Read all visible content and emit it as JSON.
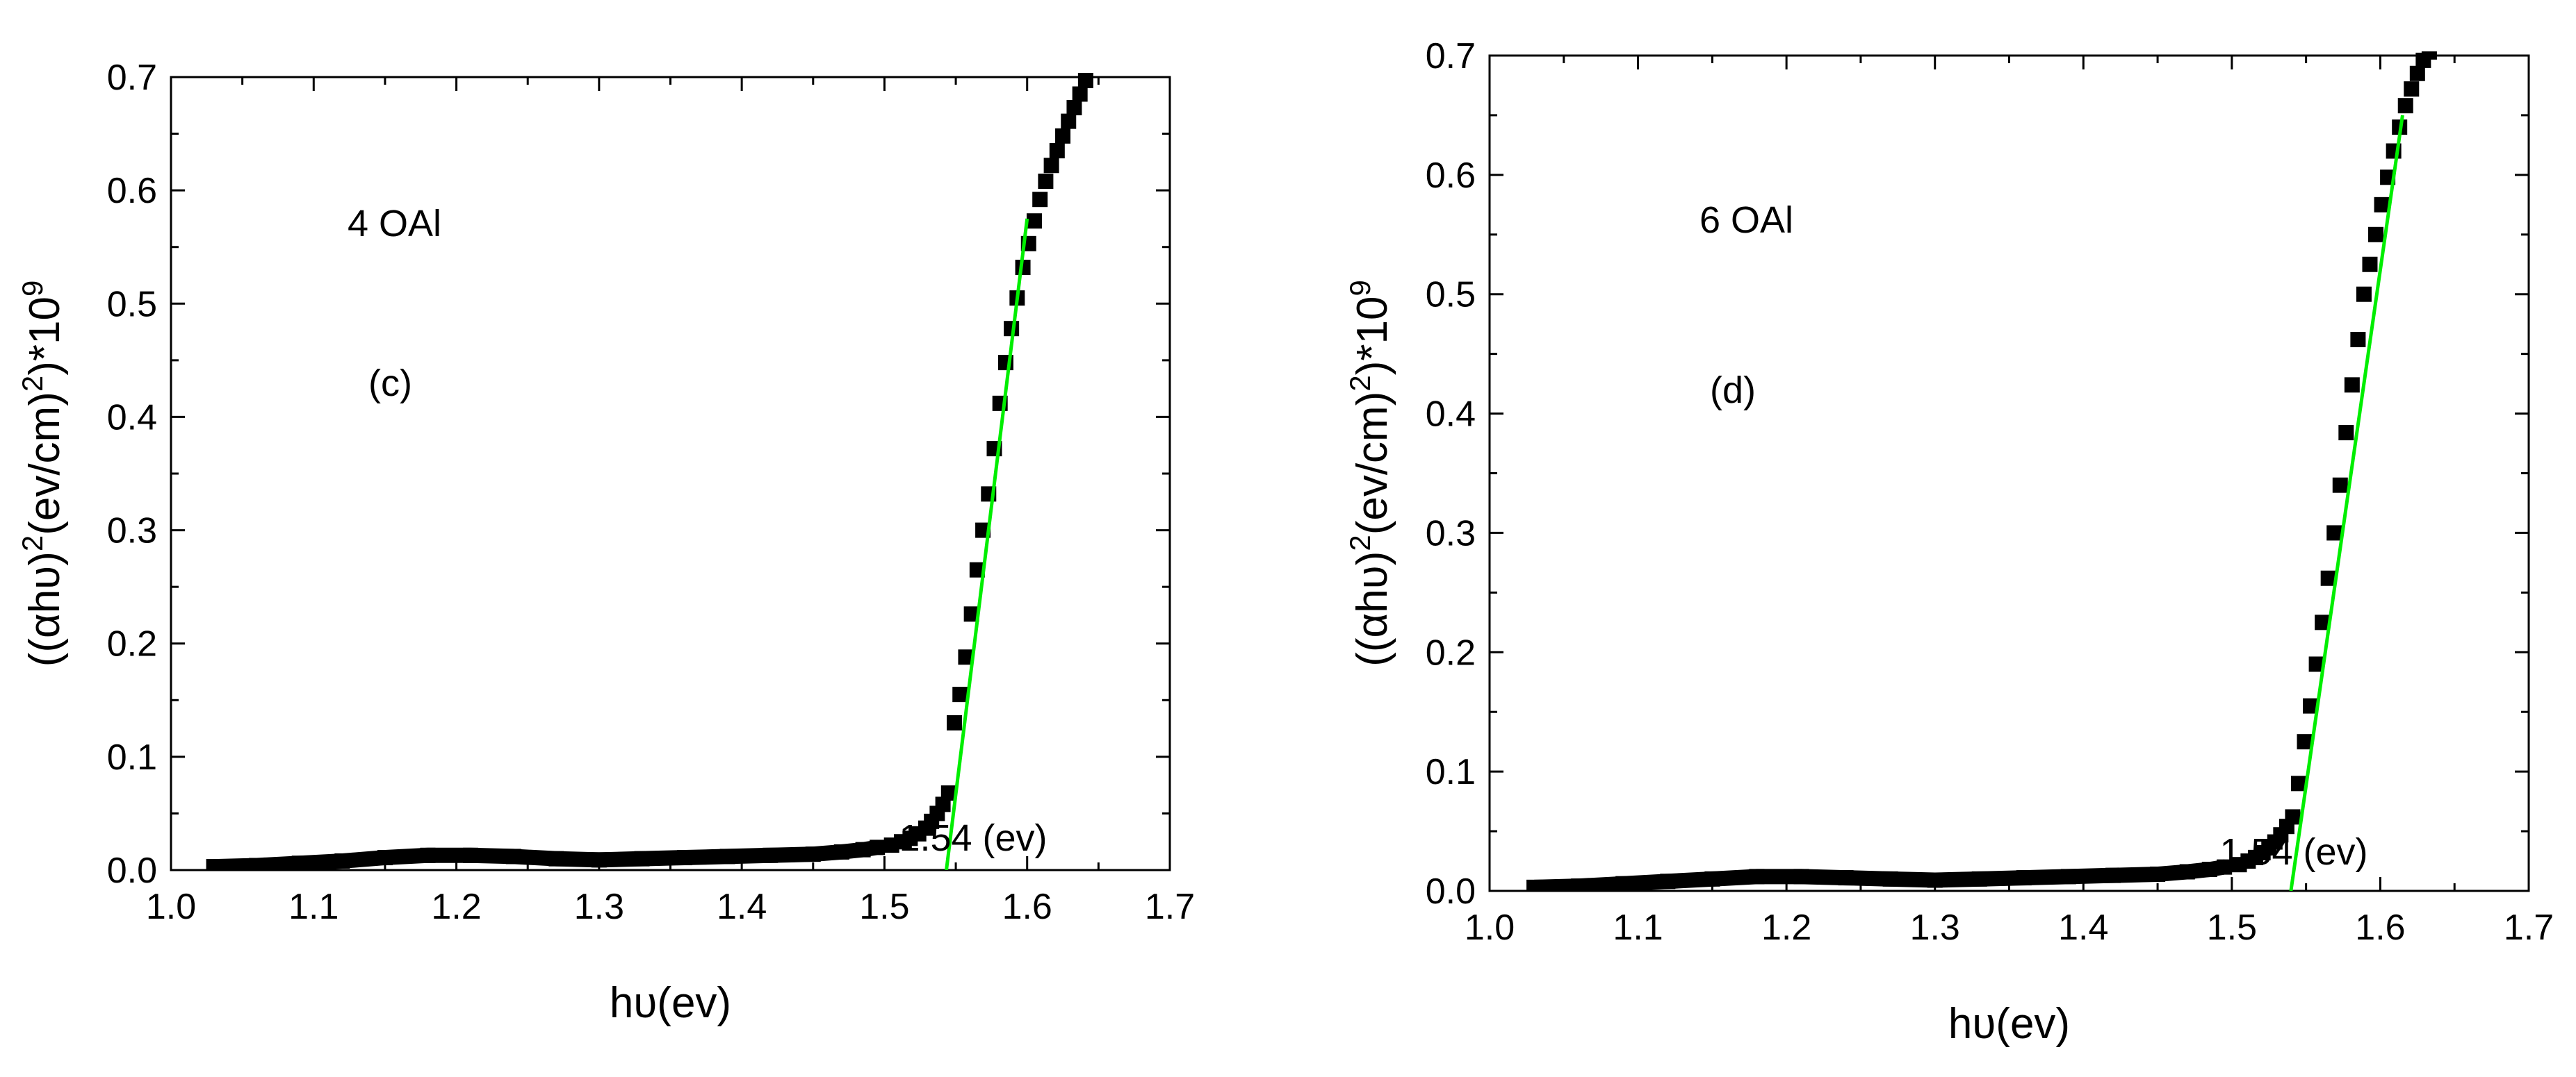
{
  "chart_data": [
    {
      "type": "scatter",
      "panel_label": "(c)",
      "sample_label": "4 OAl",
      "xlabel": "hυ(ev)",
      "ylabel": "((αhυ)²(ev/cm)²)*10⁹",
      "ylabel_parts": {
        "pre": "((αhυ)",
        "sup1": "2",
        "mid": "(ev/cm)",
        "sup2": "2",
        "post": ")*10",
        "sup3": "9"
      },
      "xlim": [
        1.0,
        1.7
      ],
      "ylim": [
        0.0,
        0.7
      ],
      "x_ticks": [
        "1.0",
        "1.1",
        "1.2",
        "1.3",
        "1.4",
        "1.5",
        "1.6",
        "1.7"
      ],
      "y_ticks": [
        "0.0",
        "0.1",
        "0.2",
        "0.3",
        "0.4",
        "0.5",
        "0.6",
        "0.7"
      ],
      "annotation": "1.54 (ev)",
      "fit_line": {
        "color": "#00ee00",
        "x": [
          1.5434,
          1.6
        ],
        "y": [
          0.0,
          0.575
        ]
      },
      "series": [
        {
          "name": "data",
          "color": "#000000",
          "x": [
            1.03,
            1.06,
            1.09,
            1.12,
            1.15,
            1.18,
            1.21,
            1.24,
            1.27,
            1.3,
            1.33,
            1.36,
            1.39,
            1.42,
            1.45,
            1.47,
            1.485,
            1.495,
            1.505,
            1.512,
            1.518,
            1.524,
            1.529,
            1.533,
            1.537,
            1.541,
            1.545,
            1.549,
            1.553,
            1.557,
            1.561,
            1.565,
            1.569,
            1.573,
            1.577,
            1.581,
            1.585,
            1.589,
            1.593,
            1.597,
            1.601,
            1.605,
            1.609,
            1.613,
            1.617,
            1.621,
            1.625,
            1.629,
            1.633,
            1.637,
            1.641
          ],
          "y": [
            0.003,
            0.004,
            0.006,
            0.008,
            0.011,
            0.013,
            0.013,
            0.012,
            0.01,
            0.009,
            0.01,
            0.011,
            0.012,
            0.013,
            0.014,
            0.016,
            0.018,
            0.02,
            0.022,
            0.025,
            0.028,
            0.032,
            0.037,
            0.043,
            0.05,
            0.058,
            0.068,
            0.13,
            0.155,
            0.188,
            0.226,
            0.265,
            0.3,
            0.332,
            0.372,
            0.412,
            0.448,
            0.478,
            0.505,
            0.532,
            0.553,
            0.573,
            0.592,
            0.608,
            0.622,
            0.635,
            0.648,
            0.661,
            0.673,
            0.685,
            0.697
          ]
        }
      ]
    },
    {
      "type": "scatter",
      "panel_label": "(d)",
      "sample_label": "6 OAl",
      "xlabel": "hυ(ev)",
      "ylabel": "((αhυ)²(ev/cm)²)*10⁹",
      "ylabel_parts": {
        "pre": "((αhυ)",
        "sup1": "2",
        "mid": "(ev/cm)",
        "sup2": "2",
        "post": ")*10",
        "sup3": "9"
      },
      "xlim": [
        1.0,
        1.7
      ],
      "ylim": [
        0.0,
        0.7
      ],
      "x_ticks": [
        "1.0",
        "1.1",
        "1.2",
        "1.3",
        "1.4",
        "1.5",
        "1.6",
        "1.7"
      ],
      "y_ticks": [
        "0.0",
        "0.1",
        "0.2",
        "0.3",
        "0.4",
        "0.5",
        "0.6",
        "0.7"
      ],
      "annotation": "1.54 (ev)",
      "fit_line": {
        "color": "#00ee00",
        "x": [
          1.5398,
          1.615
        ],
        "y": [
          0.0,
          0.65
        ]
      },
      "series": [
        {
          "name": "data",
          "color": "#000000",
          "x": [
            1.03,
            1.06,
            1.09,
            1.12,
            1.15,
            1.18,
            1.21,
            1.24,
            1.27,
            1.3,
            1.33,
            1.36,
            1.39,
            1.42,
            1.45,
            1.47,
            1.485,
            1.495,
            1.505,
            1.511,
            1.516,
            1.521,
            1.525,
            1.529,
            1.533,
            1.537,
            1.541,
            1.545,
            1.549,
            1.553,
            1.557,
            1.561,
            1.565,
            1.569,
            1.573,
            1.577,
            1.581,
            1.585,
            1.589,
            1.593,
            1.597,
            1.601,
            1.605,
            1.609,
            1.613,
            1.617,
            1.621,
            1.625,
            1.629,
            1.633
          ],
          "y": [
            0.003,
            0.004,
            0.006,
            0.008,
            0.01,
            0.012,
            0.012,
            0.011,
            0.01,
            0.009,
            0.01,
            0.011,
            0.012,
            0.013,
            0.014,
            0.016,
            0.018,
            0.02,
            0.022,
            0.025,
            0.028,
            0.032,
            0.036,
            0.041,
            0.047,
            0.054,
            0.062,
            0.09,
            0.125,
            0.155,
            0.19,
            0.225,
            0.262,
            0.3,
            0.34,
            0.384,
            0.424,
            0.462,
            0.5,
            0.525,
            0.55,
            0.575,
            0.598,
            0.62,
            0.64,
            0.658,
            0.672,
            0.685,
            0.696,
            0.703
          ]
        }
      ]
    }
  ]
}
